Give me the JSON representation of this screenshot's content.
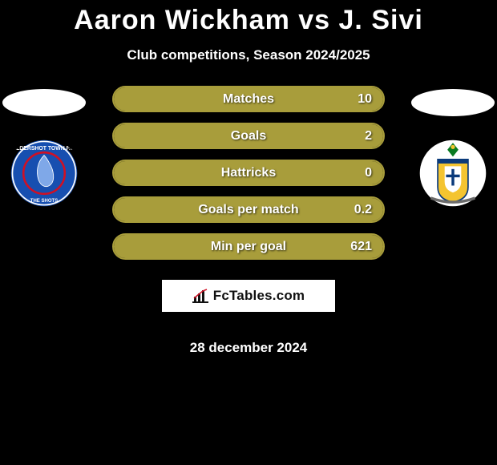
{
  "header": {
    "title": "Aaron Wickham vs J. Sivi",
    "subtitle": "Club competitions, Season 2024/2025"
  },
  "accent_color": "#a89d3b",
  "stat_bg_color": "#000000",
  "stats": [
    {
      "label": "Matches",
      "value": "10",
      "fill_pct": 100
    },
    {
      "label": "Goals",
      "value": "2",
      "fill_pct": 100
    },
    {
      "label": "Hattricks",
      "value": "0",
      "fill_pct": 100
    },
    {
      "label": "Goals per match",
      "value": "0.2",
      "fill_pct": 100
    },
    {
      "label": "Min per goal",
      "value": "621",
      "fill_pct": 100
    }
  ],
  "left": {
    "club_name": "aldershot-town-badge",
    "badge_colors": {
      "primary": "#174fb0",
      "secondary": "#ffffff",
      "accent": "#d01024"
    }
  },
  "right": {
    "club_name": "sutton-united-badge",
    "badge_colors": {
      "primary": "#ffffff",
      "secondary": "#f4c430",
      "accent": "#0b3a7a",
      "green": "#0a7a21"
    }
  },
  "branding": {
    "text": "FcTables.com"
  },
  "footer": {
    "date": "28 december 2024"
  }
}
